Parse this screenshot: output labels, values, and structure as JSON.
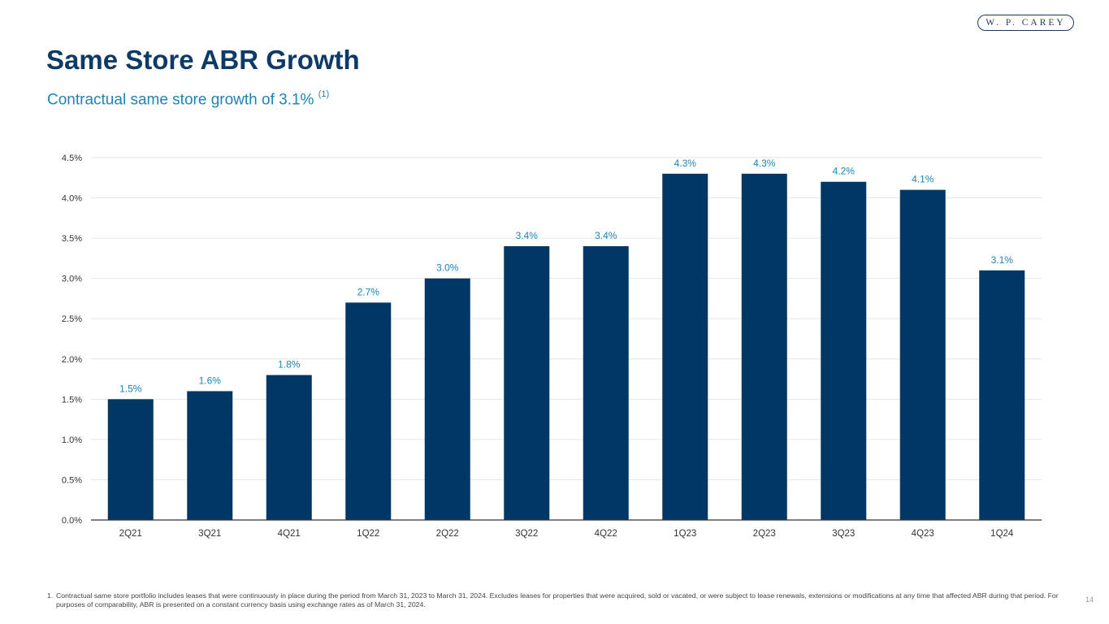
{
  "header": {
    "logo_text": "W. P. CAREY",
    "title": "Same Store ABR Growth",
    "subtitle": "Contractual same store growth of 3.1%",
    "subtitle_note": "(1)"
  },
  "chart_data": {
    "type": "bar",
    "categories": [
      "2Q21",
      "3Q21",
      "4Q21",
      "1Q22",
      "2Q22",
      "3Q22",
      "4Q22",
      "1Q23",
      "2Q23",
      "3Q23",
      "4Q23",
      "1Q24"
    ],
    "values": [
      1.5,
      1.6,
      1.8,
      2.7,
      3.0,
      3.4,
      3.4,
      4.3,
      4.3,
      4.2,
      4.1,
      3.1
    ],
    "data_labels": [
      "1.5%",
      "1.6%",
      "1.8%",
      "2.7%",
      "3.0%",
      "3.4%",
      "3.4%",
      "4.3%",
      "4.3%",
      "4.2%",
      "4.1%",
      "3.1%"
    ],
    "yticks": [
      0,
      0.5,
      1.0,
      1.5,
      2.0,
      2.5,
      3.0,
      3.5,
      4.0,
      4.5
    ],
    "ytick_labels": [
      "0.0%",
      "0.5%",
      "1.0%",
      "1.5%",
      "2.0%",
      "2.5%",
      "3.0%",
      "3.5%",
      "4.0%",
      "4.5%"
    ],
    "ylim": [
      0,
      4.5
    ],
    "grid": true,
    "legend": "none",
    "title": "",
    "xlabel": "",
    "ylabel": "",
    "colors": {
      "bar": "#003764",
      "data_label": "#1b84b8",
      "grid": "#e6e6e6",
      "axis": "#333333",
      "tick_label": "#333333"
    }
  },
  "footnote": {
    "marker": "1.",
    "text": "Contractual same store portfolio includes leases that were continuously in place during the period from March 31, 2023 to March 31, 2024. Excludes leases for properties that were acquired, sold or vacated, or were subject to lease renewals, extensions or modifications at any time that affected ABR during that period. For purposes of comparability, ABR is presented on a constant currency basis using exchange rates as of March 31, 2024."
  },
  "page_number": "14"
}
